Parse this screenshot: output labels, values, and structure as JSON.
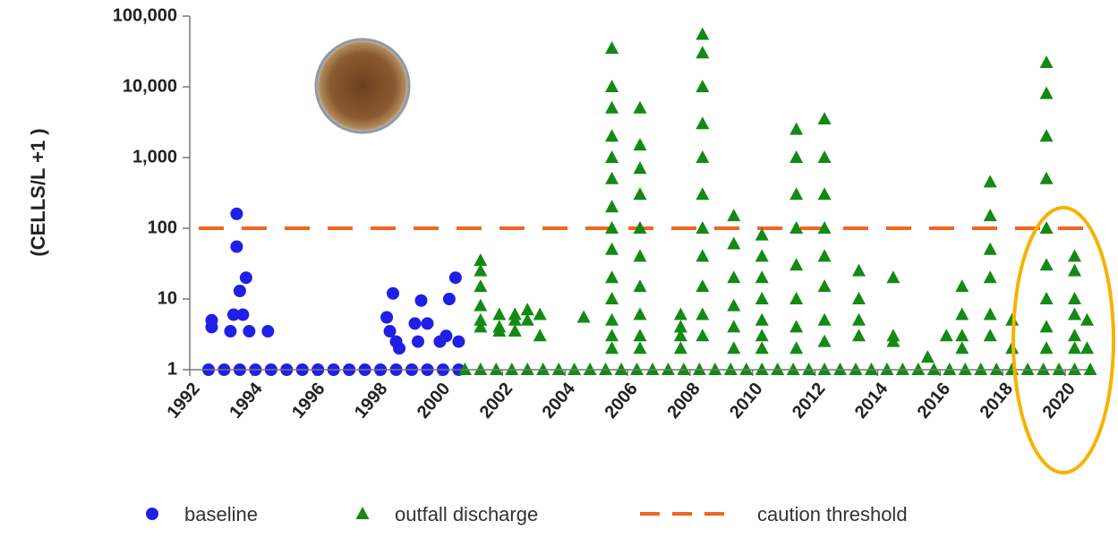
{
  "chart_data": {
    "type": "scatter",
    "y_label": "(CELLS/L +1 )",
    "log_y": true,
    "xlim": [
      1992,
      2021
    ],
    "ylim": [
      1,
      100000
    ],
    "xticks": [
      1992,
      1994,
      1996,
      1998,
      2000,
      2002,
      2004,
      2006,
      2008,
      2010,
      2012,
      2014,
      2016,
      2018,
      2020
    ],
    "yticks": [
      1,
      10,
      100,
      {
        "value": 1000,
        "label": "1,000"
      },
      {
        "value": 10000,
        "label": "10,000"
      },
      {
        "value": 100000,
        "label": "100,000"
      }
    ],
    "threshold": {
      "name": "caution threshold",
      "value": 100,
      "color": "#f26522"
    },
    "series": [
      {
        "name": "baseline",
        "color": "#1f1fe6",
        "marker": "circle",
        "x": [
          1992.6,
          1993.1,
          1993.6,
          1994.1,
          1994.6,
          1995.1,
          1995.6,
          1996.1,
          1996.6,
          1997.1,
          1997.6,
          1998.1,
          1998.6,
          1999.1,
          1999.6,
          2000.1,
          2000.6,
          1992.7,
          1992.7,
          1993.5,
          1993.5,
          1993.6,
          1993.8,
          1993.4,
          1993.7,
          1993.3,
          1993.9,
          1994.5,
          1998.3,
          1998.5,
          1998.4,
          1998.6,
          1998.7,
          1999.2,
          1999.4,
          1999.3,
          1999.6,
          2000.3,
          2000.5,
          2000.2,
          2000.0,
          2000.6
        ],
        "values": [
          1,
          1,
          1,
          1,
          1,
          1,
          1,
          1,
          1,
          1,
          1,
          1,
          1,
          1,
          1,
          1,
          1,
          5,
          4,
          160,
          55,
          13,
          20,
          6,
          6,
          3.5,
          3.5,
          3.5,
          5.5,
          12,
          3.5,
          2.5,
          2,
          4.5,
          9.5,
          2.5,
          4.5,
          10,
          20,
          3,
          2.5,
          2.5
        ]
      },
      {
        "name": "outfall discharge",
        "color": "#138a13",
        "marker": "triangle",
        "x": [
          2000.8,
          2001.3,
          2001.8,
          2002.3,
          2002.8,
          2003.3,
          2003.8,
          2004.3,
          2004.8,
          2005.3,
          2005.8,
          2006.3,
          2006.8,
          2007.3,
          2007.8,
          2008.3,
          2008.8,
          2009.3,
          2009.8,
          2010.3,
          2010.8,
          2011.3,
          2011.8,
          2012.3,
          2012.8,
          2013.3,
          2013.8,
          2014.3,
          2014.8,
          2015.3,
          2015.8,
          2016.3,
          2016.8,
          2017.3,
          2017.8,
          2018.3,
          2018.8,
          2019.3,
          2019.8,
          2020.3,
          2020.8,
          2001.3,
          2001.3,
          2001.3,
          2001.3,
          2001.3,
          2001.3,
          2001.9,
          2001.9,
          2001.9,
          2002.4,
          2002.4,
          2002.4,
          2002.8,
          2002.8,
          2003.2,
          2003.2,
          2004.6,
          2005.5,
          2005.5,
          2005.5,
          2005.5,
          2005.5,
          2005.5,
          2005.5,
          2005.5,
          2005.5,
          2005.5,
          2005.5,
          2005.5,
          2005.5,
          2005.5,
          2006.4,
          2006.4,
          2006.4,
          2006.4,
          2006.4,
          2006.4,
          2006.4,
          2006.4,
          2006.4,
          2006.4,
          2007.7,
          2007.7,
          2007.7,
          2007.7,
          2008.4,
          2008.4,
          2008.4,
          2008.4,
          2008.4,
          2008.4,
          2008.4,
          2008.4,
          2008.4,
          2008.4,
          2008.4,
          2009.4,
          2009.4,
          2009.4,
          2009.4,
          2009.4,
          2009.4,
          2010.3,
          2010.3,
          2010.3,
          2010.3,
          2010.3,
          2010.3,
          2010.3,
          2011.4,
          2011.4,
          2011.4,
          2011.4,
          2011.4,
          2011.4,
          2011.4,
          2011.4,
          2012.3,
          2012.3,
          2012.3,
          2012.3,
          2012.3,
          2012.3,
          2012.3,
          2012.3,
          2013.4,
          2013.4,
          2013.4,
          2013.4,
          2014.5,
          2014.5,
          2014.5,
          2015.6,
          2016.2,
          2016.7,
          2016.7,
          2016.7,
          2016.7,
          2017.6,
          2017.6,
          2017.6,
          2017.6,
          2017.6,
          2017.6,
          2018.3,
          2018.3,
          2019.4,
          2019.4,
          2019.4,
          2019.4,
          2019.4,
          2019.4,
          2019.4,
          2019.4,
          2019.4,
          2020.3,
          2020.3,
          2020.3,
          2020.3,
          2020.3,
          2020.3,
          2020.7,
          2020.7
        ],
        "values": [
          1,
          1,
          1,
          1,
          1,
          1,
          1,
          1,
          1,
          1,
          1,
          1,
          1,
          1,
          1,
          1,
          1,
          1,
          1,
          1,
          1,
          1,
          1,
          1,
          1,
          1,
          1,
          1,
          1,
          1,
          1,
          1,
          1,
          1,
          1,
          1,
          1,
          1,
          1,
          1,
          1,
          35,
          25,
          15,
          8,
          5,
          4,
          6,
          4,
          3.5,
          6,
          5,
          3.5,
          7,
          5,
          6,
          3,
          5.5,
          35000,
          10000,
          5000,
          2000,
          1000,
          500,
          200,
          100,
          50,
          20,
          10,
          5,
          3,
          2,
          5000,
          1500,
          700,
          300,
          100,
          40,
          15,
          6,
          3,
          2,
          6,
          4,
          3,
          2,
          55000,
          30000,
          10000,
          3000,
          1000,
          300,
          100,
          40,
          15,
          6,
          3,
          150,
          60,
          20,
          8,
          4,
          2,
          80,
          40,
          20,
          10,
          5,
          3,
          2,
          2500,
          1000,
          300,
          100,
          30,
          10,
          4,
          2,
          3500,
          1000,
          300,
          100,
          40,
          15,
          5,
          2.5,
          25,
          10,
          5,
          3,
          20,
          3,
          2.5,
          1.5,
          3,
          15,
          6,
          3,
          2,
          450,
          150,
          50,
          20,
          6,
          3,
          5,
          2,
          22000,
          8000,
          2000,
          500,
          100,
          30,
          10,
          4,
          2,
          40,
          25,
          10,
          6,
          3,
          2,
          5,
          2
        ]
      }
    ]
  }
}
